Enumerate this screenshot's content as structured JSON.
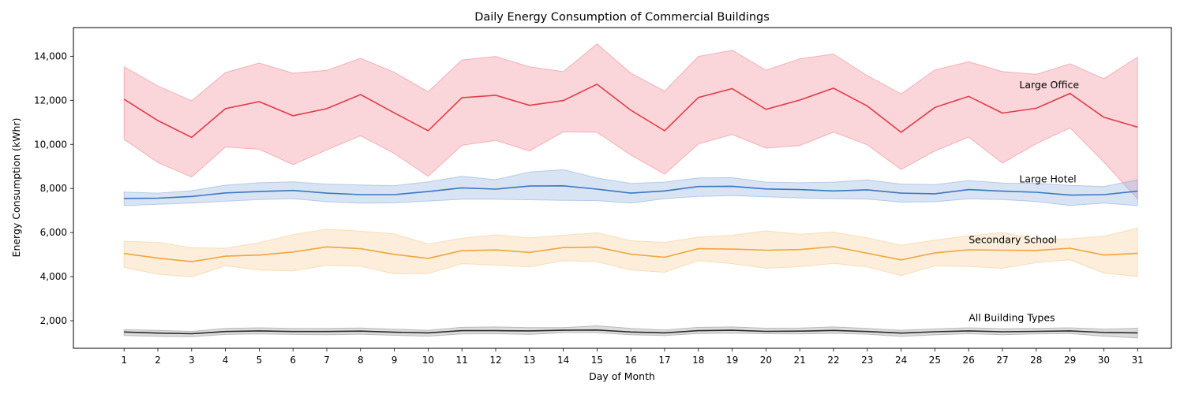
{
  "chart_data": {
    "type": "line",
    "title": "Daily Energy Consumption of Commercial Buildings",
    "xlabel": "Day of Month",
    "ylabel": "Energy Consumption (kWhr)",
    "x": [
      1,
      2,
      3,
      4,
      5,
      6,
      7,
      8,
      9,
      10,
      11,
      12,
      13,
      14,
      15,
      16,
      17,
      18,
      19,
      20,
      21,
      22,
      23,
      24,
      25,
      26,
      27,
      28,
      29,
      30,
      31
    ],
    "x_ticks": [
      "1",
      "2",
      "3",
      "4",
      "5",
      "6",
      "7",
      "8",
      "9",
      "10",
      "11",
      "12",
      "13",
      "14",
      "15",
      "16",
      "17",
      "18",
      "19",
      "20",
      "21",
      "22",
      "23",
      "24",
      "25",
      "26",
      "27",
      "28",
      "29",
      "30",
      "31"
    ],
    "y_ticks": [
      2000,
      4000,
      6000,
      8000,
      10000,
      12000,
      14000
    ],
    "y_tick_labels": [
      "2,000",
      "4,000",
      "6,000",
      "8,000",
      "10,000",
      "12,000",
      "14,000"
    ],
    "ylim": [
      750,
      15300
    ],
    "xlim": [
      -0.5,
      32.0
    ],
    "grid": false,
    "legend": "none",
    "series": [
      {
        "name": "Large Office",
        "color": "#e23b46",
        "band_color": "#f08a94",
        "mean": [
          12050,
          11080,
          10320,
          11620,
          11940,
          11300,
          11620,
          12260,
          11430,
          10620,
          12120,
          12230,
          11770,
          11990,
          12730,
          11550,
          10620,
          12130,
          12530,
          11590,
          12010,
          12550,
          11740,
          10550,
          11680,
          12180,
          11420,
          11640,
          12310,
          11230,
          10780
        ],
        "lower": [
          10230,
          9180,
          8520,
          9880,
          9780,
          9080,
          9750,
          10390,
          9590,
          8550,
          9960,
          10180,
          9700,
          10570,
          10550,
          9520,
          8650,
          10020,
          10450,
          9830,
          9950,
          10560,
          9980,
          8860,
          9700,
          10330,
          9150,
          10030,
          10750,
          9200,
          7530
        ],
        "upper": [
          13520,
          12650,
          11980,
          13260,
          13690,
          13230,
          13360,
          13910,
          13270,
          12390,
          13830,
          13990,
          13520,
          13300,
          14560,
          13230,
          12420,
          13990,
          14270,
          13370,
          13880,
          14100,
          13120,
          12290,
          13380,
          13750,
          13300,
          13180,
          13660,
          12980,
          13960
        ]
      },
      {
        "name": "Large Hotel",
        "color": "#3a78c3",
        "band_color": "#8fb2de",
        "mean": [
          7550,
          7560,
          7640,
          7800,
          7860,
          7910,
          7790,
          7720,
          7720,
          7860,
          8030,
          7970,
          8110,
          8120,
          7970,
          7790,
          7890,
          8090,
          8100,
          7980,
          7950,
          7890,
          7940,
          7790,
          7760,
          7950,
          7880,
          7830,
          7700,
          7720,
          7880
        ],
        "lower": [
          7220,
          7280,
          7340,
          7420,
          7500,
          7540,
          7400,
          7330,
          7350,
          7430,
          7510,
          7510,
          7490,
          7460,
          7450,
          7340,
          7540,
          7640,
          7680,
          7620,
          7570,
          7540,
          7520,
          7380,
          7400,
          7530,
          7500,
          7410,
          7230,
          7340,
          7220
        ],
        "upper": [
          7840,
          7790,
          7900,
          8150,
          8260,
          8300,
          8200,
          8160,
          8130,
          8300,
          8550,
          8400,
          8750,
          8850,
          8480,
          8230,
          8290,
          8480,
          8490,
          8290,
          8260,
          8290,
          8390,
          8200,
          8180,
          8360,
          8250,
          8240,
          8140,
          8090,
          8400
        ]
      },
      {
        "name": "Secondary School",
        "color": "#f0a53c",
        "band_color": "#f6cf98",
        "mean": [
          5050,
          4840,
          4680,
          4930,
          4980,
          5120,
          5350,
          5270,
          5010,
          4830,
          5180,
          5210,
          5100,
          5320,
          5340,
          5020,
          4880,
          5270,
          5250,
          5200,
          5230,
          5360,
          5060,
          4760,
          5080,
          5220,
          5200,
          5190,
          5290,
          4980,
          5060
        ],
        "lower": [
          4420,
          4110,
          3990,
          4490,
          4300,
          4260,
          4510,
          4470,
          4130,
          4140,
          4590,
          4520,
          4440,
          4730,
          4670,
          4300,
          4200,
          4730,
          4590,
          4380,
          4450,
          4600,
          4440,
          4050,
          4490,
          4460,
          4380,
          4640,
          4760,
          4160,
          4010
        ],
        "upper": [
          5600,
          5560,
          5310,
          5290,
          5540,
          5910,
          6150,
          6070,
          5940,
          5480,
          5740,
          5900,
          5760,
          5880,
          5990,
          5630,
          5560,
          5790,
          5880,
          6080,
          5930,
          6020,
          5760,
          5430,
          5660,
          5860,
          6000,
          5700,
          5720,
          5830,
          6200
        ]
      },
      {
        "name": "All Building Types",
        "color": "#2b2b2b",
        "band_color": "#9a9a9a",
        "mean": [
          1490,
          1440,
          1410,
          1510,
          1540,
          1510,
          1510,
          1530,
          1480,
          1450,
          1550,
          1550,
          1540,
          1570,
          1580,
          1490,
          1450,
          1550,
          1570,
          1520,
          1530,
          1560,
          1510,
          1440,
          1500,
          1540,
          1500,
          1520,
          1540,
          1470,
          1450
        ],
        "lower": [
          1330,
          1290,
          1280,
          1380,
          1400,
          1380,
          1370,
          1390,
          1340,
          1300,
          1400,
          1410,
          1380,
          1460,
          1460,
          1360,
          1330,
          1420,
          1440,
          1410,
          1400,
          1430,
          1390,
          1290,
          1360,
          1410,
          1370,
          1400,
          1420,
          1300,
          1220
        ],
        "upper": [
          1600,
          1560,
          1520,
          1650,
          1680,
          1650,
          1650,
          1670,
          1620,
          1570,
          1700,
          1720,
          1690,
          1690,
          1770,
          1650,
          1580,
          1700,
          1720,
          1660,
          1670,
          1720,
          1650,
          1570,
          1630,
          1680,
          1640,
          1650,
          1680,
          1620,
          1660
        ]
      }
    ],
    "annotations": [
      {
        "text": "Large Office",
        "x": 27.5,
        "y": 12550
      },
      {
        "text": "Large Hotel",
        "x": 27.5,
        "y": 8270
      },
      {
        "text": "Secondary School",
        "x": 26.0,
        "y": 5520
      },
      {
        "text": "All Building Types",
        "x": 26.0,
        "y": 1990
      }
    ]
  }
}
